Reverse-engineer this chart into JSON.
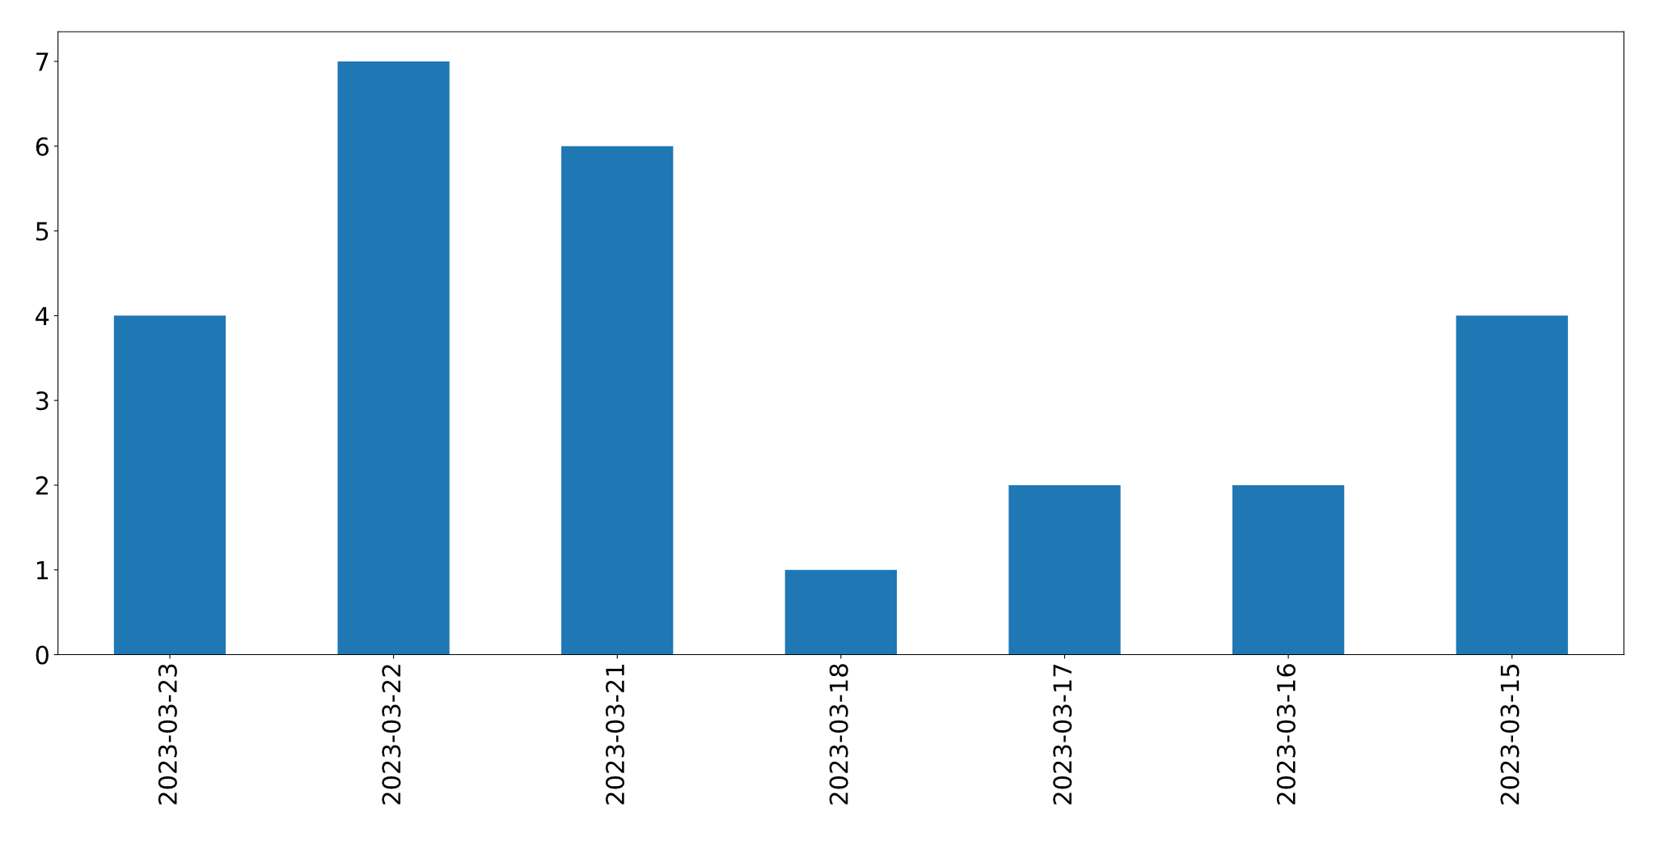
{
  "chart_data": {
    "type": "bar",
    "categories": [
      "2023-03-23",
      "2023-03-22",
      "2023-03-21",
      "2023-03-18",
      "2023-03-17",
      "2023-03-16",
      "2023-03-15"
    ],
    "values": [
      4,
      7,
      6,
      1,
      2,
      2,
      4
    ],
    "color": "#1f77b4",
    "ylim": [
      0,
      7.35
    ],
    "yticks": [
      0,
      1,
      2,
      3,
      4,
      5,
      6,
      7
    ],
    "grid": false,
    "legend": false
  }
}
